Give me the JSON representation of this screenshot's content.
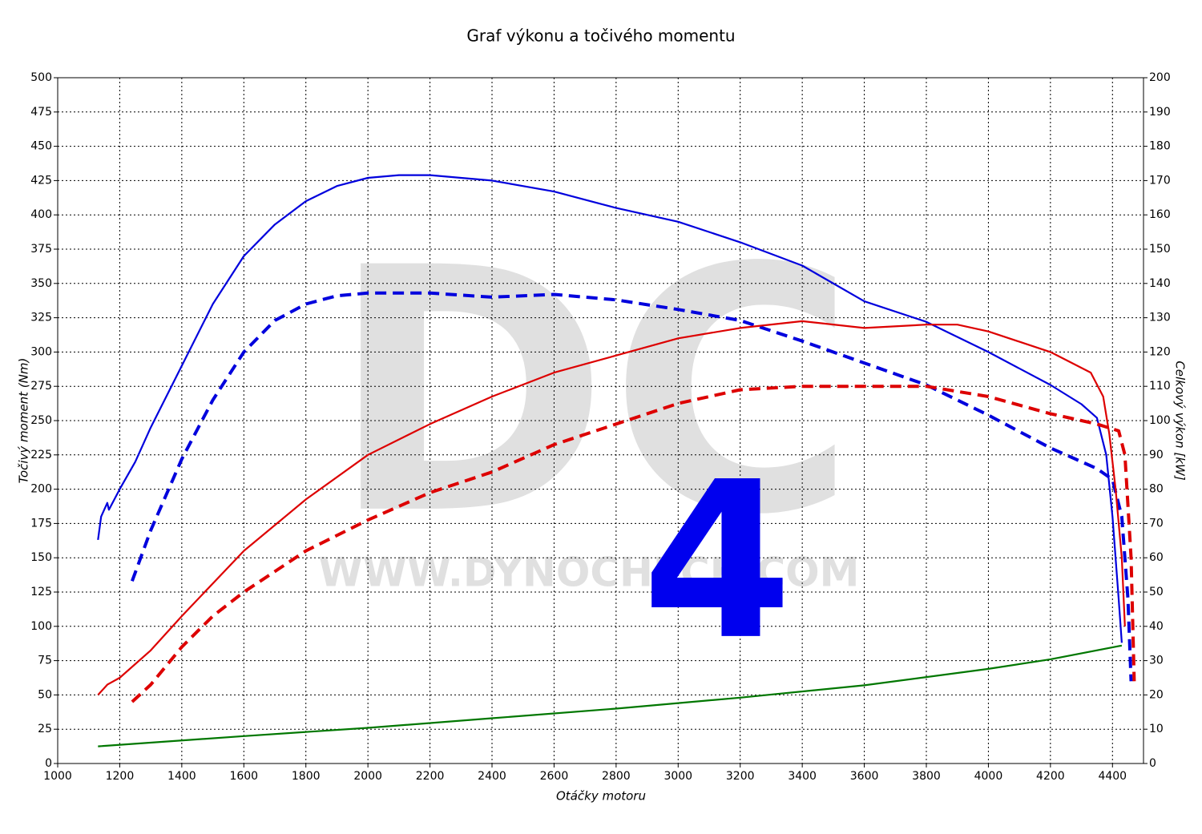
{
  "chart_data": {
    "type": "line",
    "title": "Graf výkonu a točivého momentu",
    "xlabel": "Otáčky motoru",
    "ylabel": "Točivý moment (Nm)",
    "y2label": "Celkový výkon [kW]",
    "xlim": [
      1000,
      4500
    ],
    "xticks": [
      1000,
      1200,
      1400,
      1600,
      1800,
      2000,
      2200,
      2400,
      2600,
      2800,
      3000,
      3200,
      3400,
      3600,
      3800,
      4000,
      4200,
      4400
    ],
    "ylim": [
      0,
      500
    ],
    "yticks": [
      0,
      25,
      50,
      75,
      100,
      125,
      150,
      175,
      200,
      225,
      250,
      275,
      300,
      325,
      350,
      375,
      400,
      425,
      450,
      475,
      500
    ],
    "y2lim": [
      0,
      200
    ],
    "y2ticks": [
      0,
      10,
      20,
      30,
      40,
      50,
      60,
      70,
      80,
      90,
      100,
      110,
      120,
      130,
      140,
      150,
      160,
      170,
      180,
      190,
      200
    ],
    "grid": true,
    "watermark": [
      "DC",
      "WWW.DYNOCHECK.COM",
      "4"
    ],
    "series": [
      {
        "color": "#0000dd",
        "dash": false,
        "x": [
          1130,
          1140,
          1160,
          1165,
          1200,
          1250,
          1300,
          1400,
          1500,
          1600,
          1700,
          1800,
          1900,
          2000,
          2100,
          2200,
          2400,
          2600,
          2800,
          3000,
          3200,
          3400,
          3600,
          3800,
          4000,
          4200,
          4300,
          4350,
          4380,
          4400,
          4420,
          4430
        ],
        "values": [
          163,
          180,
          190,
          185,
          200,
          220,
          245,
          290,
          335,
          370,
          393,
          410,
          421,
          427,
          429,
          429,
          425,
          417,
          405,
          395,
          380,
          363,
          337,
          322,
          300,
          276,
          262,
          252,
          225,
          180,
          120,
          88
        ]
      },
      {
        "color": "#0000dd",
        "dash": true,
        "x": [
          1240,
          1300,
          1400,
          1500,
          1600,
          1700,
          1800,
          1900,
          2000,
          2200,
          2400,
          2600,
          2800,
          3000,
          3200,
          3400,
          3600,
          3800,
          4000,
          4200,
          4350,
          4400,
          4430,
          4450,
          4460
        ],
        "values": [
          133,
          170,
          222,
          265,
          300,
          323,
          335,
          341,
          343,
          343,
          340,
          342,
          338,
          331,
          323,
          308,
          292,
          276,
          254,
          230,
          215,
          207,
          180,
          120,
          60
        ]
      },
      {
        "color": "#dd0000",
        "dash": false,
        "axis": "y2",
        "x": [
          1130,
          1160,
          1200,
          1300,
          1400,
          1600,
          1800,
          2000,
          2200,
          2400,
          2600,
          2800,
          3000,
          3200,
          3400,
          3600,
          3800,
          3900,
          4000,
          4200,
          4330,
          4370,
          4390,
          4410,
          4430,
          4440
        ],
        "values": [
          20,
          23,
          25,
          33,
          43,
          62,
          77,
          90,
          99,
          107,
          114,
          119,
          124,
          127,
          129,
          127,
          128,
          128,
          126,
          120,
          114,
          107,
          96,
          80,
          60,
          40
        ]
      },
      {
        "color": "#dd0000",
        "dash": true,
        "axis": "y2",
        "x": [
          1240,
          1300,
          1400,
          1500,
          1600,
          1800,
          2000,
          2200,
          2400,
          2600,
          2800,
          3000,
          3200,
          3400,
          3600,
          3800,
          4000,
          4200,
          4350,
          4420,
          4440,
          4460,
          4470
        ],
        "values": [
          18,
          23,
          34,
          43,
          50,
          62,
          71,
          79,
          85,
          93,
          99,
          105,
          109,
          110,
          110,
          110,
          107,
          102,
          99,
          97,
          90,
          60,
          24
        ]
      },
      {
        "color": "#007700",
        "dash": false,
        "axis": "y2",
        "x": [
          1130,
          1600,
          2000,
          2400,
          2800,
          3200,
          3600,
          4000,
          4200,
          4430
        ],
        "values": [
          5,
          8,
          10.4,
          13.2,
          16,
          19.2,
          22.8,
          27.6,
          30.4,
          34.4
        ]
      }
    ]
  }
}
